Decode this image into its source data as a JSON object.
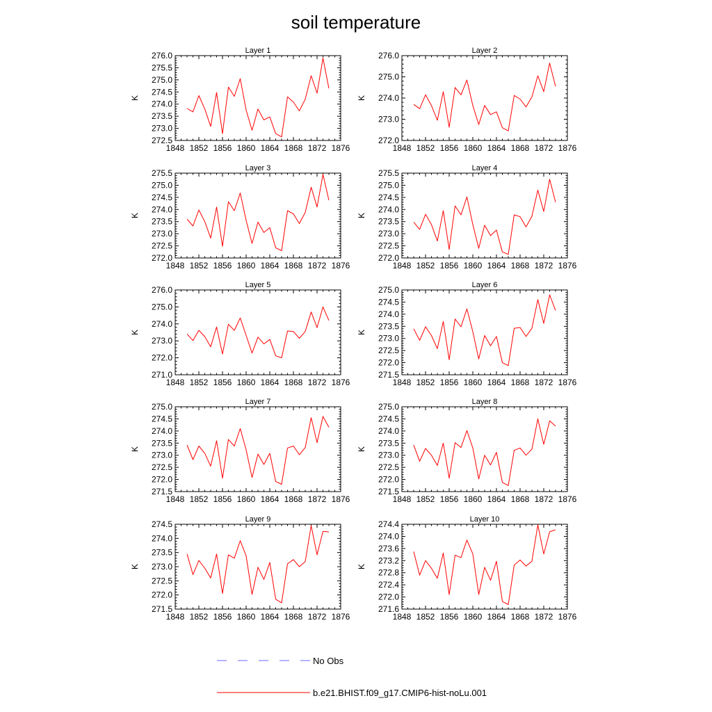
{
  "figure": {
    "title": "soil temperature"
  },
  "legend": {
    "obs_label": "No Obs",
    "obs_color": "#6a6aff",
    "model_label": "b.e21.BHIST.f09_g17.CMIP6-hist-noLu.001",
    "model_color": "#ff0000"
  },
  "chart_data": [
    {
      "type": "line",
      "title": "Layer 1",
      "ylabel": "K",
      "xlim": [
        1848,
        1876
      ],
      "xticks": [
        1848,
        1852,
        1856,
        1860,
        1864,
        1868,
        1872,
        1876
      ],
      "ylim": [
        272.5,
        276.0
      ],
      "yticks": [
        "272.5",
        "273.0",
        "273.5",
        "274.0",
        "274.5",
        "275.0",
        "275.5",
        "276.0"
      ],
      "x": [
        1850,
        1851,
        1852,
        1853,
        1854,
        1855,
        1856,
        1857,
        1858,
        1859,
        1860,
        1861,
        1862,
        1863,
        1864,
        1865,
        1866,
        1867,
        1868,
        1869,
        1870,
        1871,
        1872,
        1873,
        1874
      ],
      "series": [
        {
          "name": "b.e21.BHIST.f09_g17.CMIP6-hist-noLu.001",
          "values": [
            273.82,
            273.68,
            274.35,
            273.8,
            273.08,
            274.48,
            272.78,
            274.7,
            274.32,
            275.05,
            273.75,
            272.92,
            273.8,
            273.35,
            273.47,
            272.78,
            272.65,
            274.3,
            274.08,
            273.72,
            274.2,
            275.17,
            274.45,
            275.9,
            274.65
          ]
        }
      ]
    },
    {
      "type": "line",
      "title": "Layer 2",
      "ylabel": "K",
      "xlim": [
        1848,
        1876
      ],
      "xticks": [
        1848,
        1852,
        1856,
        1860,
        1864,
        1868,
        1872,
        1876
      ],
      "ylim": [
        272.0,
        276.0
      ],
      "yticks": [
        "272.0",
        "273.0",
        "274.0",
        "275.0",
        "276.0"
      ],
      "x": [
        1850,
        1851,
        1852,
        1853,
        1854,
        1855,
        1856,
        1857,
        1858,
        1859,
        1860,
        1861,
        1862,
        1863,
        1864,
        1865,
        1866,
        1867,
        1868,
        1869,
        1870,
        1871,
        1872,
        1873,
        1874
      ],
      "series": [
        {
          "name": "b.e21.BHIST.f09_g17.CMIP6-hist-noLu.001",
          "values": [
            273.7,
            273.5,
            274.15,
            273.65,
            272.95,
            274.3,
            272.62,
            274.5,
            274.15,
            274.85,
            273.65,
            272.75,
            273.65,
            273.22,
            273.35,
            272.6,
            272.45,
            274.12,
            273.95,
            273.58,
            274.05,
            275.05,
            274.3,
            275.65,
            274.55
          ]
        }
      ]
    },
    {
      "type": "line",
      "title": "Layer 3",
      "ylabel": "K",
      "xlim": [
        1848,
        1876
      ],
      "xticks": [
        1848,
        1852,
        1856,
        1860,
        1864,
        1868,
        1872,
        1876
      ],
      "ylim": [
        272.0,
        275.5
      ],
      "yticks": [
        "272.0",
        "272.5",
        "273.0",
        "273.5",
        "274.0",
        "274.5",
        "275.0",
        "275.5"
      ],
      "x": [
        1850,
        1851,
        1852,
        1853,
        1854,
        1855,
        1856,
        1857,
        1858,
        1859,
        1860,
        1861,
        1862,
        1863,
        1864,
        1865,
        1866,
        1867,
        1868,
        1869,
        1870,
        1871,
        1872,
        1873,
        1874
      ],
      "series": [
        {
          "name": "b.e21.BHIST.f09_g17.CMIP6-hist-noLu.001",
          "values": [
            273.6,
            273.32,
            273.98,
            273.5,
            272.82,
            274.1,
            272.48,
            274.32,
            273.95,
            274.68,
            273.55,
            272.6,
            273.48,
            273.05,
            273.25,
            272.42,
            272.3,
            273.95,
            273.82,
            273.42,
            273.88,
            274.92,
            274.1,
            275.45,
            274.38
          ]
        }
      ]
    },
    {
      "type": "line",
      "title": "Layer 4",
      "ylabel": "K",
      "xlim": [
        1848,
        1876
      ],
      "xticks": [
        1848,
        1852,
        1856,
        1860,
        1864,
        1868,
        1872,
        1876
      ],
      "ylim": [
        272.0,
        275.5
      ],
      "yticks": [
        "272.0",
        "272.5",
        "273.0",
        "273.5",
        "274.0",
        "274.5",
        "275.0",
        "275.5"
      ],
      "x": [
        1850,
        1851,
        1852,
        1853,
        1854,
        1855,
        1856,
        1857,
        1858,
        1859,
        1860,
        1861,
        1862,
        1863,
        1864,
        1865,
        1866,
        1867,
        1868,
        1869,
        1870,
        1871,
        1872,
        1873,
        1874
      ],
      "series": [
        {
          "name": "b.e21.BHIST.f09_g17.CMIP6-hist-noLu.001",
          "values": [
            273.48,
            273.18,
            273.8,
            273.38,
            272.7,
            273.95,
            272.35,
            274.15,
            273.78,
            274.52,
            273.38,
            272.4,
            273.35,
            272.92,
            273.15,
            272.25,
            272.15,
            273.78,
            273.7,
            273.28,
            273.72,
            274.8,
            273.92,
            275.25,
            274.3
          ]
        }
      ]
    },
    {
      "type": "line",
      "title": "Layer 5",
      "ylabel": "K",
      "xlim": [
        1848,
        1876
      ],
      "xticks": [
        1848,
        1852,
        1856,
        1860,
        1864,
        1868,
        1872,
        1876
      ],
      "ylim": [
        271.0,
        276.0
      ],
      "yticks": [
        "271.0",
        "272.0",
        "273.0",
        "274.0",
        "275.0",
        "276.0"
      ],
      "x": [
        1850,
        1851,
        1852,
        1853,
        1854,
        1855,
        1856,
        1857,
        1858,
        1859,
        1860,
        1861,
        1862,
        1863,
        1864,
        1865,
        1866,
        1867,
        1868,
        1869,
        1870,
        1871,
        1872,
        1873,
        1874
      ],
      "series": [
        {
          "name": "b.e21.BHIST.f09_g17.CMIP6-hist-noLu.001",
          "values": [
            273.4,
            273.02,
            273.62,
            273.25,
            272.65,
            273.82,
            272.22,
            273.98,
            273.62,
            274.35,
            273.32,
            272.28,
            273.22,
            272.82,
            273.08,
            272.12,
            272.0,
            273.58,
            273.55,
            273.15,
            273.55,
            274.7,
            273.78,
            275.0,
            274.2
          ]
        }
      ]
    },
    {
      "type": "line",
      "title": "Layer 6",
      "ylabel": "K",
      "xlim": [
        1848,
        1876
      ],
      "xticks": [
        1848,
        1852,
        1856,
        1860,
        1864,
        1868,
        1872,
        1876
      ],
      "ylim": [
        271.5,
        275.0
      ],
      "yticks": [
        "271.5",
        "272.0",
        "272.5",
        "273.0",
        "273.5",
        "274.0",
        "274.5",
        "275.0"
      ],
      "x": [
        1850,
        1851,
        1852,
        1853,
        1854,
        1855,
        1856,
        1857,
        1858,
        1859,
        1860,
        1861,
        1862,
        1863,
        1864,
        1865,
        1866,
        1867,
        1868,
        1869,
        1870,
        1871,
        1872,
        1873,
        1874
      ],
      "series": [
        {
          "name": "b.e21.BHIST.f09_g17.CMIP6-hist-noLu.001",
          "values": [
            273.4,
            272.92,
            273.48,
            273.12,
            272.58,
            273.7,
            272.12,
            273.8,
            273.48,
            274.22,
            273.28,
            272.15,
            273.12,
            272.7,
            273.08,
            272.0,
            271.88,
            273.42,
            273.45,
            273.08,
            273.42,
            274.6,
            273.62,
            274.8,
            274.15
          ]
        }
      ]
    },
    {
      "type": "line",
      "title": "Layer 7",
      "ylabel": "K",
      "xlim": [
        1848,
        1876
      ],
      "xticks": [
        1848,
        1852,
        1856,
        1860,
        1864,
        1868,
        1872,
        1876
      ],
      "ylim": [
        271.5,
        275.0
      ],
      "yticks": [
        "271.5",
        "272.0",
        "272.5",
        "273.0",
        "273.5",
        "274.0",
        "274.5",
        "275.0"
      ],
      "x": [
        1850,
        1851,
        1852,
        1853,
        1854,
        1855,
        1856,
        1857,
        1858,
        1859,
        1860,
        1861,
        1862,
        1863,
        1864,
        1865,
        1866,
        1867,
        1868,
        1869,
        1870,
        1871,
        1872,
        1873,
        1874
      ],
      "series": [
        {
          "name": "b.e21.BHIST.f09_g17.CMIP6-hist-noLu.001",
          "values": [
            273.42,
            272.82,
            273.38,
            273.08,
            272.55,
            273.6,
            272.05,
            273.65,
            273.38,
            274.1,
            273.22,
            272.08,
            273.05,
            272.62,
            273.08,
            271.92,
            271.8,
            273.3,
            273.38,
            273.02,
            273.32,
            274.55,
            273.52,
            274.6,
            274.15
          ]
        }
      ]
    },
    {
      "type": "line",
      "title": "Layer 8",
      "ylabel": "K",
      "xlim": [
        1848,
        1876
      ],
      "xticks": [
        1848,
        1852,
        1856,
        1860,
        1864,
        1868,
        1872,
        1876
      ],
      "ylim": [
        271.5,
        275.0
      ],
      "yticks": [
        "271.5",
        "272.0",
        "272.5",
        "273.0",
        "273.5",
        "274.0",
        "274.5",
        "275.0"
      ],
      "x": [
        1850,
        1851,
        1852,
        1853,
        1854,
        1855,
        1856,
        1857,
        1858,
        1859,
        1860,
        1861,
        1862,
        1863,
        1864,
        1865,
        1866,
        1867,
        1868,
        1869,
        1870,
        1871,
        1872,
        1873,
        1874
      ],
      "series": [
        {
          "name": "b.e21.BHIST.f09_g17.CMIP6-hist-noLu.001",
          "values": [
            273.42,
            272.75,
            273.28,
            273.0,
            272.58,
            273.5,
            272.05,
            273.52,
            273.32,
            274.02,
            273.3,
            272.02,
            273.0,
            272.6,
            273.12,
            271.88,
            271.75,
            273.2,
            273.3,
            273.0,
            273.25,
            274.5,
            273.45,
            274.42,
            274.2
          ]
        }
      ]
    },
    {
      "type": "line",
      "title": "Layer 9",
      "ylabel": "K",
      "xlim": [
        1848,
        1876
      ],
      "xticks": [
        1848,
        1852,
        1856,
        1860,
        1864,
        1868,
        1872,
        1876
      ],
      "ylim": [
        271.5,
        274.5
      ],
      "yticks": [
        "271.5",
        "272.0",
        "272.5",
        "273.0",
        "273.5",
        "274.0",
        "274.5"
      ],
      "x": [
        1850,
        1851,
        1852,
        1853,
        1854,
        1855,
        1856,
        1857,
        1858,
        1859,
        1860,
        1861,
        1862,
        1863,
        1864,
        1865,
        1866,
        1867,
        1868,
        1869,
        1870,
        1871,
        1872,
        1873,
        1874
      ],
      "series": [
        {
          "name": "b.e21.BHIST.f09_g17.CMIP6-hist-noLu.001",
          "values": [
            273.45,
            272.72,
            273.22,
            272.95,
            272.6,
            273.45,
            272.05,
            273.42,
            273.3,
            273.92,
            273.38,
            272.02,
            272.98,
            272.55,
            273.15,
            271.85,
            271.72,
            273.1,
            273.25,
            273.0,
            273.18,
            274.45,
            273.42,
            274.25,
            274.23
          ]
        }
      ]
    },
    {
      "type": "line",
      "title": "Layer 10",
      "ylabel": "K",
      "xlim": [
        1848,
        1876
      ],
      "xticks": [
        1848,
        1852,
        1856,
        1860,
        1864,
        1868,
        1872,
        1876
      ],
      "ylim": [
        271.6,
        274.4
      ],
      "yticks": [
        "271.6",
        "272.0",
        "272.4",
        "272.8",
        "273.2",
        "273.6",
        "274.0",
        "274.4"
      ],
      "x": [
        1850,
        1851,
        1852,
        1853,
        1854,
        1855,
        1856,
        1857,
        1858,
        1859,
        1860,
        1861,
        1862,
        1863,
        1864,
        1865,
        1866,
        1867,
        1868,
        1869,
        1870,
        1871,
        1872,
        1873,
        1874
      ],
      "series": [
        {
          "name": "b.e21.BHIST.f09_g17.CMIP6-hist-noLu.001",
          "values": [
            273.5,
            272.72,
            273.2,
            272.95,
            272.62,
            273.45,
            272.08,
            273.38,
            273.3,
            273.88,
            273.42,
            272.08,
            272.98,
            272.55,
            273.18,
            271.85,
            271.75,
            273.05,
            273.22,
            273.02,
            273.18,
            274.38,
            273.42,
            274.15,
            274.22
          ]
        }
      ]
    }
  ]
}
